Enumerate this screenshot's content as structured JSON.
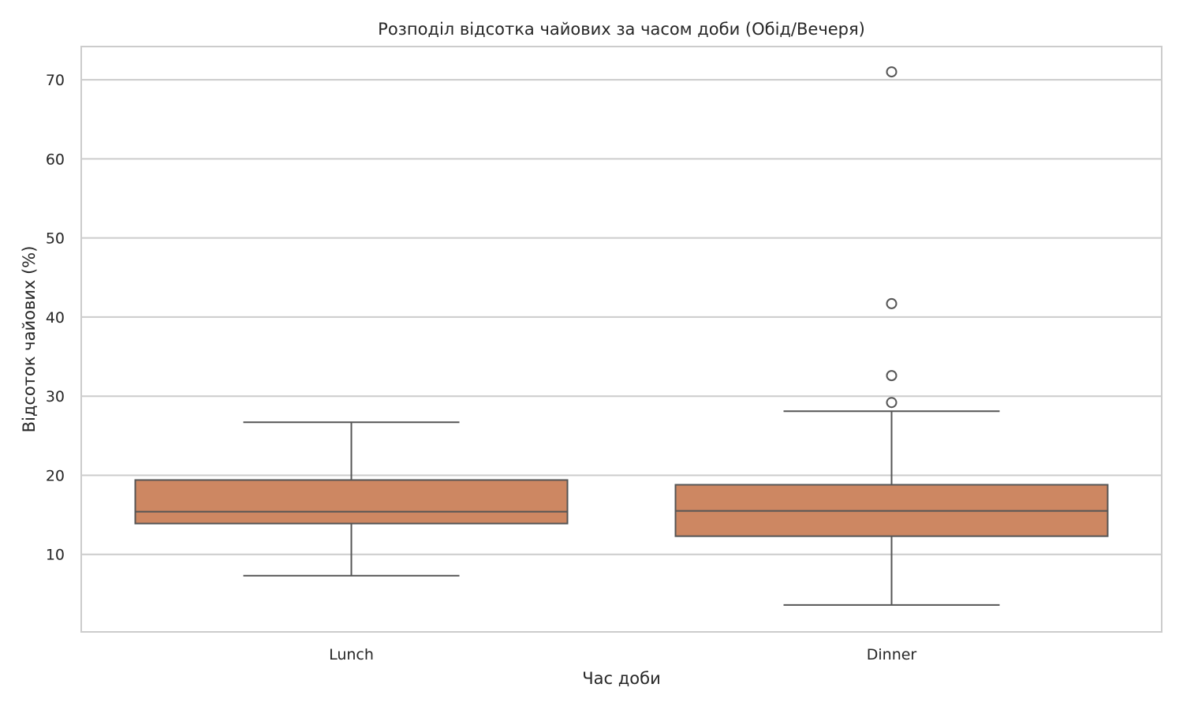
{
  "chart_data": {
    "type": "box",
    "title": "Розподіл відсотка чайових за часом доби (Обід/Вечеря)",
    "xlabel": "Час доби",
    "ylabel": "Відсоток чайових (%)",
    "ylim": [
      0.2,
      74.2
    ],
    "yticks": [
      10,
      20,
      30,
      40,
      50,
      60,
      70
    ],
    "grid": true,
    "categories": [
      "Lunch",
      "Dinner"
    ],
    "boxes": [
      {
        "category": "Lunch",
        "whisker_low": 7.3,
        "q1": 13.9,
        "median": 15.4,
        "q3": 19.4,
        "whisker_high": 26.7,
        "outliers": []
      },
      {
        "category": "Dinner",
        "whisker_low": 3.6,
        "q1": 12.3,
        "median": 15.5,
        "q3": 18.8,
        "whisker_high": 28.1,
        "outliers": [
          29.2,
          32.6,
          41.7,
          71.0
        ]
      }
    ],
    "colors": {
      "box_fill": "#cd8762",
      "line": "#555555",
      "grid": "#cccccc",
      "frame": "#cccccc"
    }
  }
}
